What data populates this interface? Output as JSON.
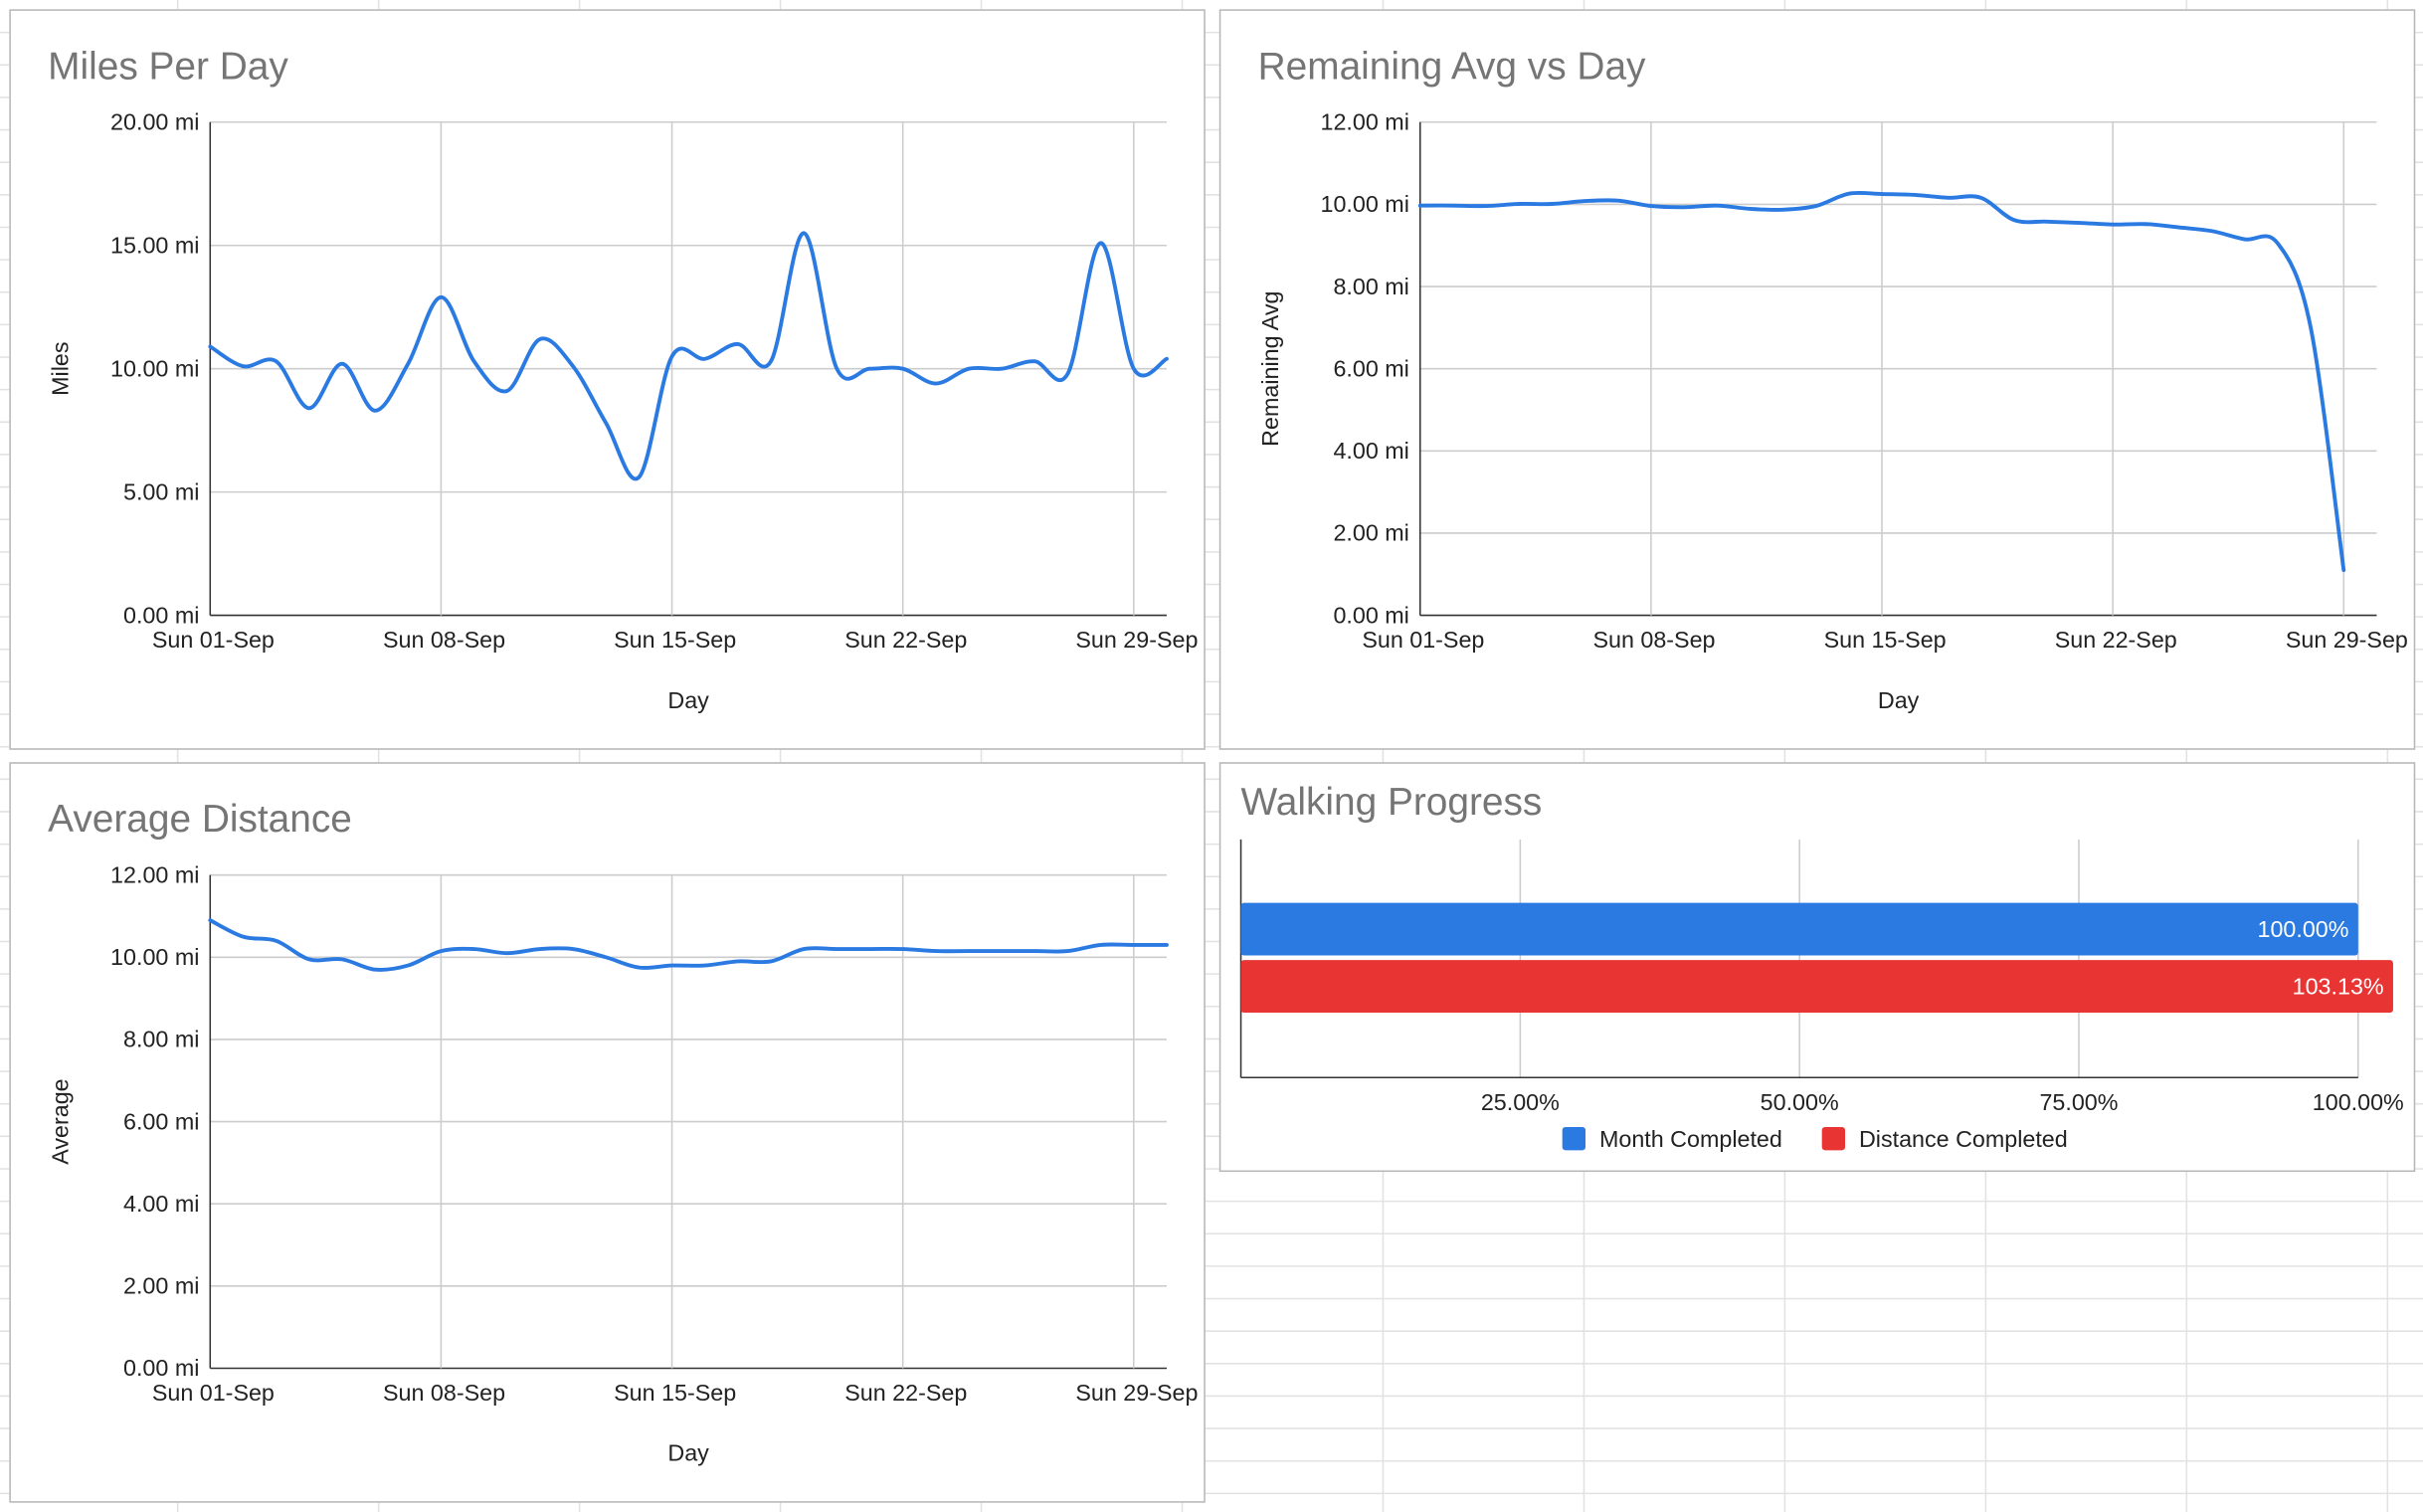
{
  "charts": [
    {
      "id": "miles",
      "title": "Miles Per Day",
      "chart_data": {
        "type": "line",
        "title": "Miles Per Day",
        "xlabel": "Day",
        "ylabel": "Miles",
        "x_range": [
          1,
          30
        ],
        "ylim": [
          0,
          20
        ],
        "y_ticks": [
          "0.00 mi",
          "5.00 mi",
          "10.00 mi",
          "15.00 mi",
          "20.00 mi"
        ],
        "y_tick_values": [
          0,
          5,
          10,
          15,
          20
        ],
        "x_ticks": [
          "Sun 01-Sep",
          "Sun 08-Sep",
          "Sun 15-Sep",
          "Sun 22-Sep",
          "Sun 29-Sep"
        ],
        "x_tick_values": [
          1,
          8,
          15,
          22,
          29
        ],
        "grid": true,
        "color": "#2a7ae2",
        "series": [
          {
            "values": [
              10.9,
              10.1,
              10.3,
              8.4,
              10.2,
              8.3,
              10.2,
              12.9,
              10.3,
              9.1,
              11.2,
              10.1,
              7.8,
              5.6,
              10.5,
              10.4,
              11.0,
              10.3,
              15.5,
              10.0,
              10.0,
              10.0,
              9.4,
              10.0,
              10.0,
              10.3,
              9.8,
              15.1,
              10.0,
              10.4
            ]
          }
        ]
      }
    },
    {
      "id": "remaining",
      "title": "Remaining Avg vs Day",
      "chart_data": {
        "type": "line",
        "title": "Remaining Avg vs Day",
        "xlabel": "Day",
        "ylabel": "Remaining Avg",
        "x_range": [
          1,
          30
        ],
        "ylim": [
          0,
          12
        ],
        "y_ticks": [
          "0.00 mi",
          "2.00 mi",
          "4.00 mi",
          "6.00 mi",
          "8.00 mi",
          "10.00 mi",
          "12.00 mi"
        ],
        "y_tick_values": [
          0,
          2,
          4,
          6,
          8,
          10,
          12
        ],
        "x_ticks": [
          "Sun 01-Sep",
          "Sun 08-Sep",
          "Sun 15-Sep",
          "Sun 22-Sep",
          "Sun 29-Sep"
        ],
        "x_tick_values": [
          1,
          8,
          15,
          22,
          29
        ],
        "grid": true,
        "color": "#2a7ae2",
        "series": [
          {
            "values": [
              9.97,
              9.97,
              9.96,
              10.01,
              10.01,
              10.08,
              10.09,
              9.96,
              9.93,
              9.97,
              9.89,
              9.87,
              9.96,
              10.26,
              10.25,
              10.23,
              10.16,
              10.16,
              9.62,
              9.58,
              9.55,
              9.51,
              9.52,
              9.44,
              9.35,
              9.15,
              9.05,
              7.0,
              1.1
            ]
          }
        ]
      }
    },
    {
      "id": "average",
      "title": "Average Distance",
      "chart_data": {
        "type": "line",
        "title": "Average Distance",
        "xlabel": "Day",
        "ylabel": "Average",
        "x_range": [
          1,
          30
        ],
        "ylim": [
          0,
          12
        ],
        "y_ticks": [
          "0.00 mi",
          "2.00 mi",
          "4.00 mi",
          "6.00 mi",
          "8.00 mi",
          "10.00 mi",
          "12.00 mi"
        ],
        "y_tick_values": [
          0,
          2,
          4,
          6,
          8,
          10,
          12
        ],
        "x_ticks": [
          "Sun 01-Sep",
          "Sun 08-Sep",
          "Sun 15-Sep",
          "Sun 22-Sep",
          "Sun 29-Sep"
        ],
        "x_tick_values": [
          1,
          8,
          15,
          22,
          29
        ],
        "grid": true,
        "color": "#2a7ae2",
        "series": [
          {
            "values": [
              10.9,
              10.5,
              10.4,
              9.95,
              9.95,
              9.7,
              9.8,
              10.15,
              10.2,
              10.1,
              10.2,
              10.2,
              10.0,
              9.75,
              9.8,
              9.8,
              9.9,
              9.9,
              10.2,
              10.2,
              10.2,
              10.2,
              10.15,
              10.15,
              10.15,
              10.15,
              10.15,
              10.3,
              10.3,
              10.3
            ]
          }
        ]
      }
    },
    {
      "id": "progress",
      "title": "Walking Progress",
      "chart_data": {
        "type": "bar",
        "orientation": "horizontal",
        "title": "Walking Progress",
        "xlim": [
          0,
          100
        ],
        "x_ticks": [
          "25.00%",
          "50.00%",
          "75.00%",
          "100.00%"
        ],
        "x_tick_values": [
          25,
          50,
          75,
          100
        ],
        "grid": true,
        "legend_position": "bottom",
        "series": [
          {
            "name": "Month Completed",
            "value": 100.0,
            "label": "100.00%",
            "color": "#2a7ae2"
          },
          {
            "name": "Distance Completed",
            "value": 103.13,
            "label": "103.13%",
            "color": "#e93434"
          }
        ]
      }
    }
  ]
}
